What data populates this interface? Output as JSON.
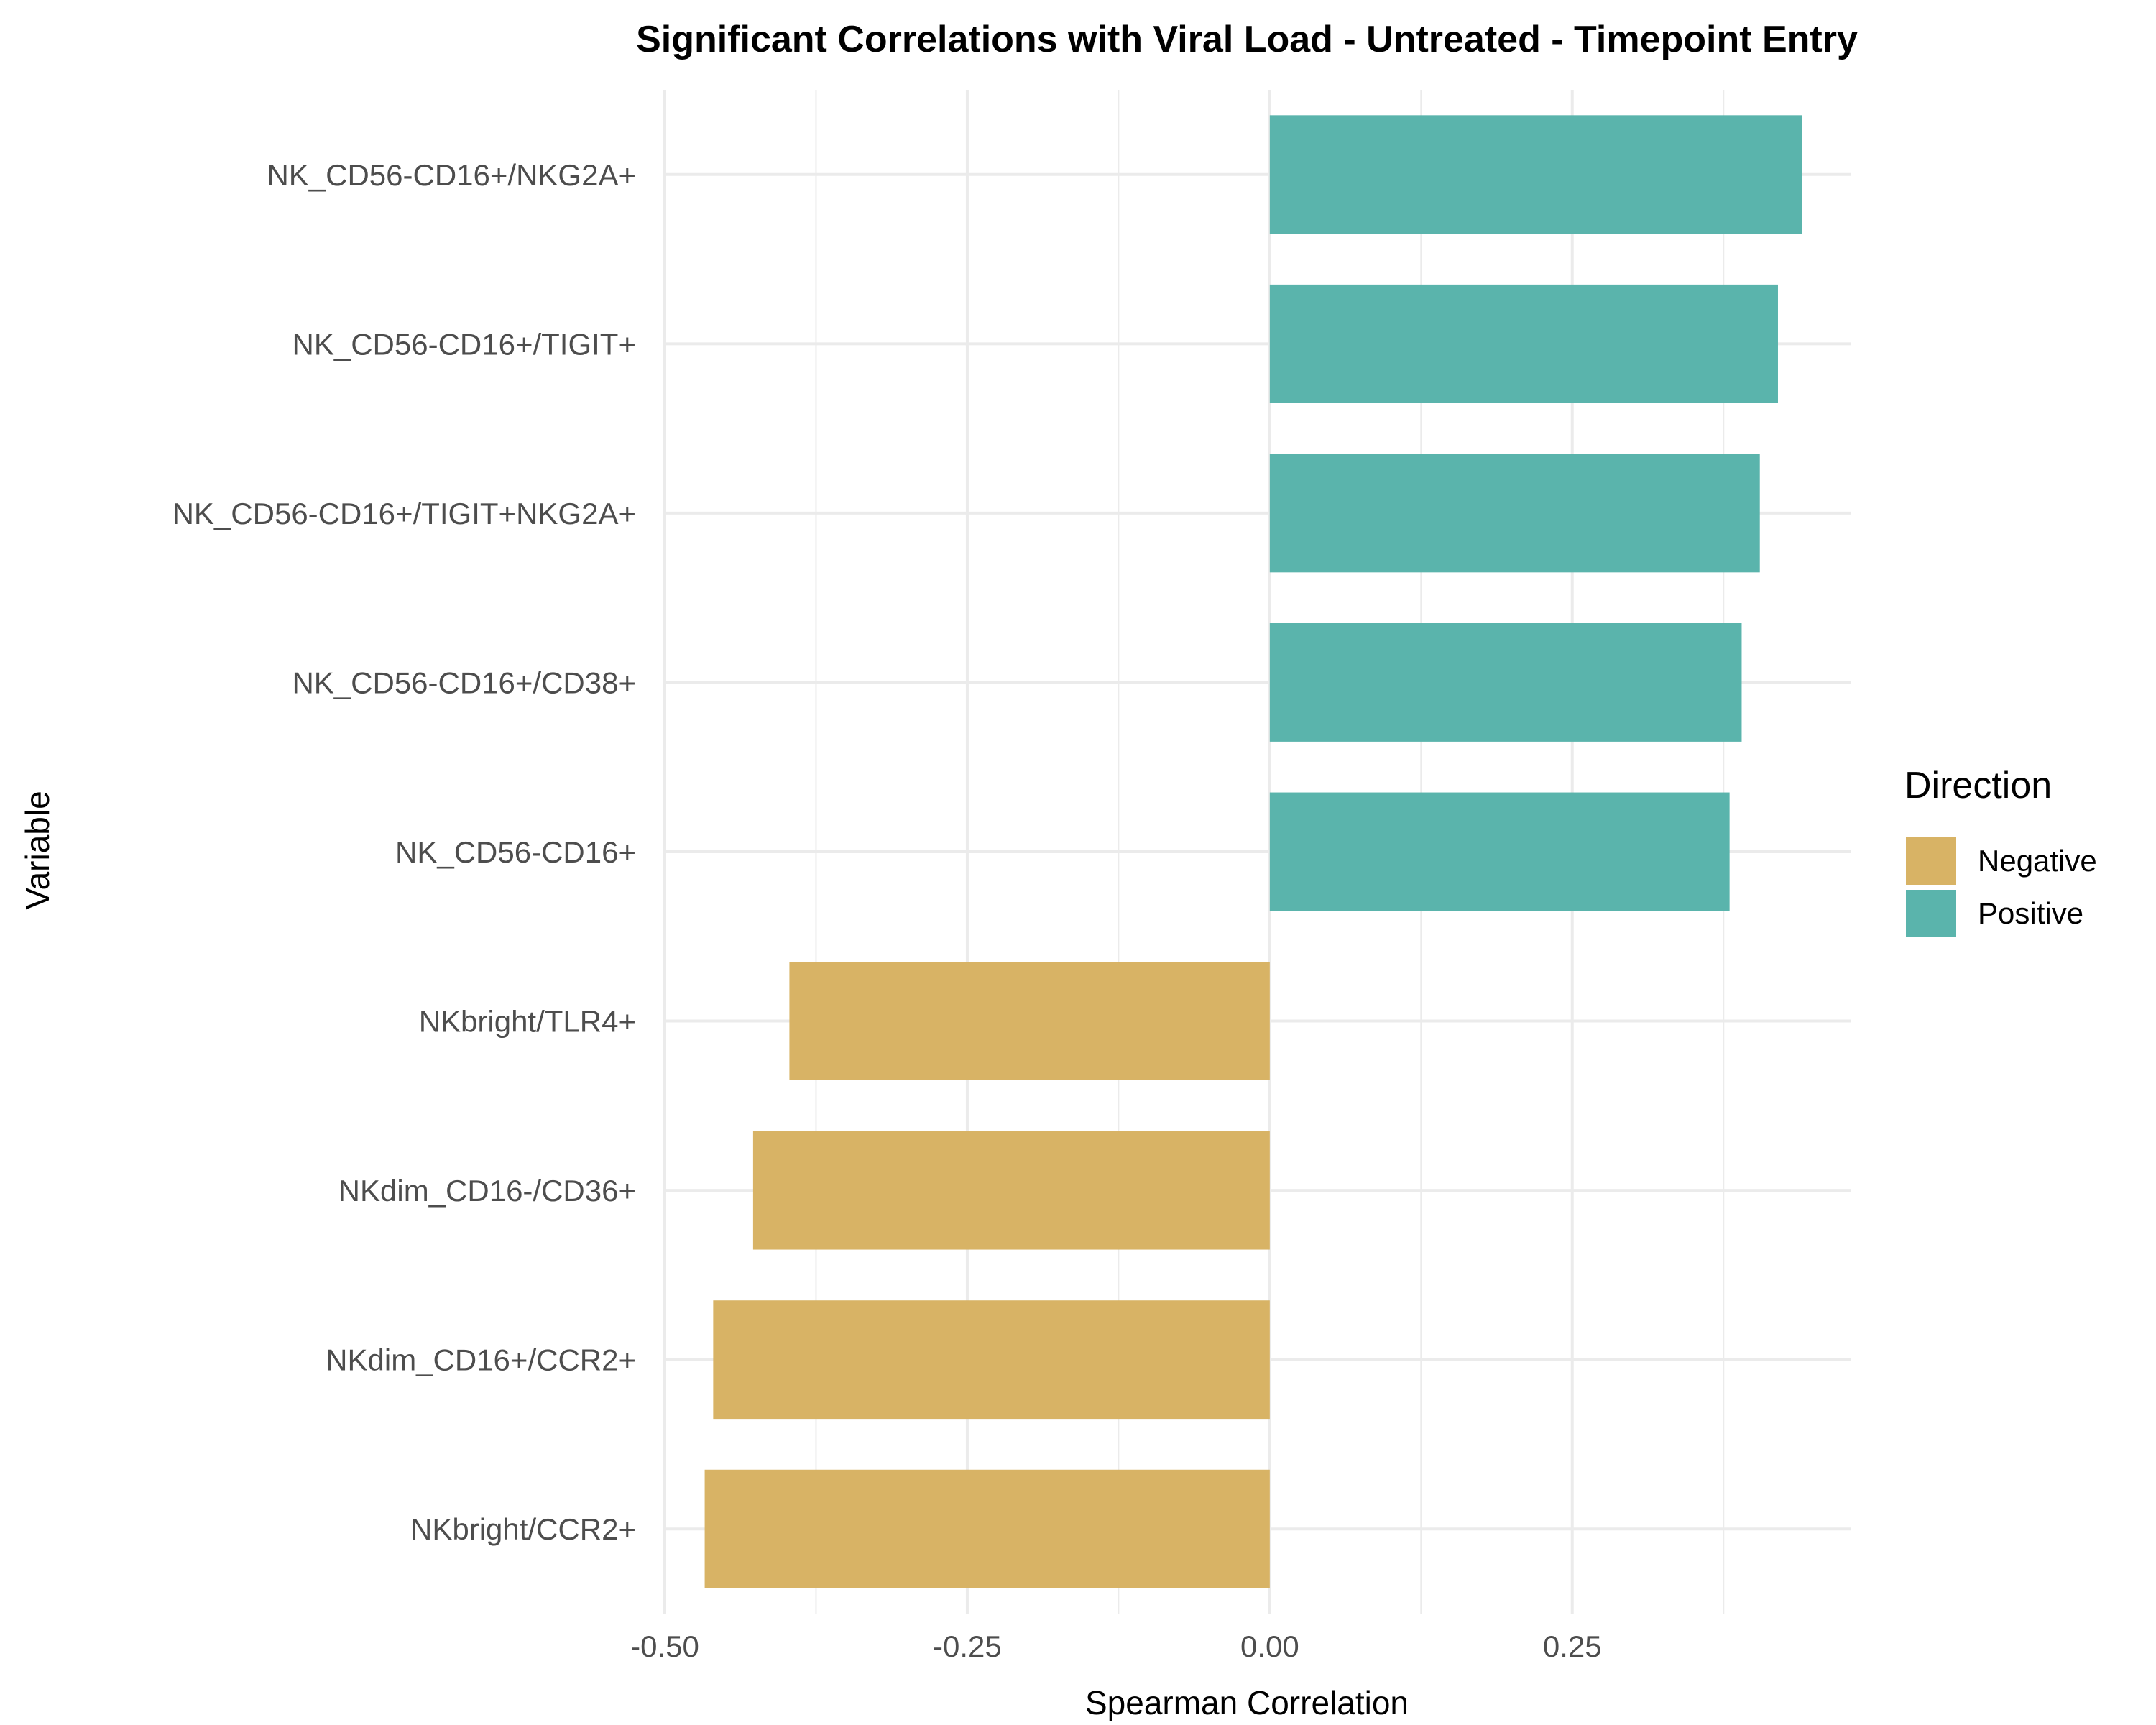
{
  "chart_data": {
    "type": "bar",
    "orientation": "horizontal",
    "title": "Significant Correlations with Viral Load - Untreated - Timepoint Entry",
    "xlabel": "Spearman Correlation",
    "ylabel": "Variable",
    "xlim": [
      -0.5,
      0.48
    ],
    "x_ticks": [
      -0.5,
      -0.25,
      0.0,
      0.25
    ],
    "x_tick_labels": [
      "-0.50",
      "-0.25",
      "0.00",
      "0.25"
    ],
    "grid": true,
    "legend": {
      "title": "Direction",
      "placement": "right",
      "entries": [
        {
          "name": "Negative",
          "color": "#D8B365"
        },
        {
          "name": "Positive",
          "color": "#5AB4AC"
        }
      ]
    },
    "categories": [
      "NK_CD56-CD16+/NKG2A+",
      "NK_CD56-CD16+/TIGIT+",
      "NK_CD56-CD16+/TIGIT+NKG2A+",
      "NK_CD56-CD16+/CD38+",
      "NK_CD56-CD16+",
      "NKbright/TLR4+",
      "NKdim_CD16-/CD36+",
      "NKdim_CD16+/CCR2+",
      "NKbright/CCR2+"
    ],
    "values": [
      0.44,
      0.42,
      0.405,
      0.39,
      0.38,
      -0.397,
      -0.427,
      -0.46,
      -0.467
    ],
    "directions": [
      "Positive",
      "Positive",
      "Positive",
      "Positive",
      "Positive",
      "Negative",
      "Negative",
      "Negative",
      "Negative"
    ]
  }
}
